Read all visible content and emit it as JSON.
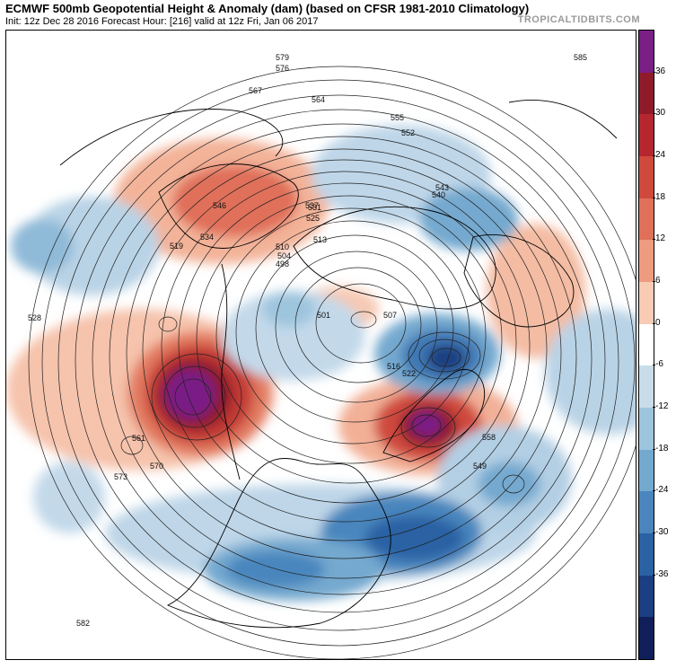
{
  "header": {
    "title": "ECMWF 500mb Geopotential Height & Anomaly (dam) (based on CFSR 1981-2010 Climatology)",
    "subtitle": "Init: 12z Dec 28 2016   Forecast Hour: [216]   valid at 12z Fri, Jan 06 2017",
    "brand": "TROPICALTIDBITS.COM"
  },
  "colorbar": {
    "ticks": [
      "36",
      "30",
      "24",
      "18",
      "12",
      "6",
      "0",
      "-6",
      "-12",
      "-18",
      "-24",
      "-30",
      "-36"
    ],
    "colors": [
      "#7a1f86",
      "#8f1b2a",
      "#b5262f",
      "#cf4a3d",
      "#e0705a",
      "#ee9b80",
      "#f8cbb4",
      "#ffffff",
      "#c8dcea",
      "#9ec5de",
      "#74a9cf",
      "#4a86bd",
      "#2a62a4",
      "#1b3f82",
      "#101f5a"
    ]
  },
  "map": {
    "contour_labels": [
      "582",
      "579",
      "576",
      "573",
      "570",
      "567",
      "564",
      "561",
      "558",
      "555",
      "552",
      "549",
      "546",
      "543",
      "540",
      "537",
      "534",
      "531",
      "528",
      "525",
      "522",
      "519",
      "516",
      "513",
      "510",
      "507",
      "504",
      "501",
      "498",
      "585"
    ]
  }
}
